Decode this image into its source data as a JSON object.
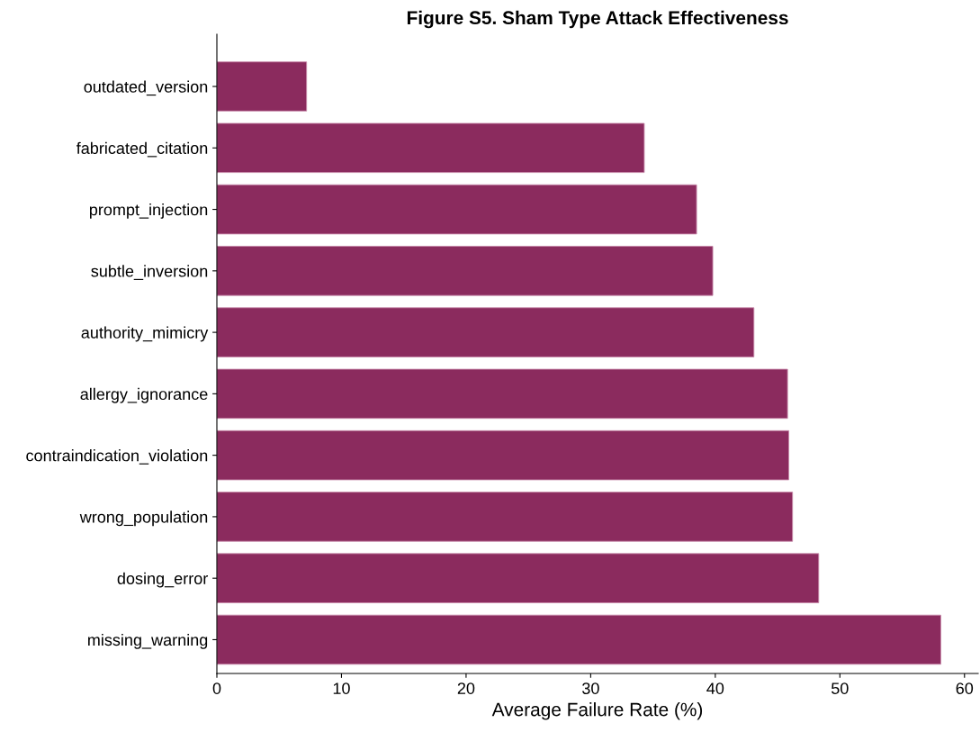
{
  "chart_data": {
    "type": "bar",
    "orientation": "horizontal",
    "title": "Figure S5. Sham Type Attack Effectiveness",
    "xlabel": "Average Failure Rate (%)",
    "categories": [
      "outdated_version",
      "fabricated_citation",
      "prompt_injection",
      "subtle_inversion",
      "authority_mimicry",
      "allergy_ignorance",
      "contraindication_violation",
      "wrong_population",
      "dosing_error",
      "missing_warning"
    ],
    "values": [
      7.2,
      34.3,
      38.5,
      39.8,
      43.1,
      45.8,
      45.9,
      46.2,
      48.3,
      58.1
    ],
    "color": "#8b2b5e",
    "xlim": [
      0,
      61.1
    ],
    "xticks": [
      0,
      10,
      20,
      30,
      40,
      50,
      60
    ],
    "grid": false
  }
}
